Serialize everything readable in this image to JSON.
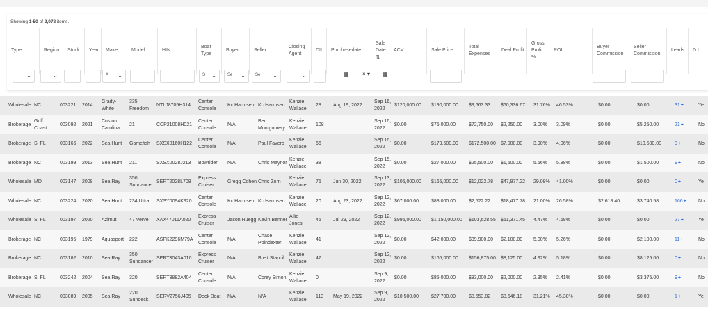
{
  "showing": {
    "prefix": "Showing ",
    "range": "1-50",
    "middle": " of ",
    "total": "2,078",
    "suffix": " items."
  },
  "headers": [
    "Type",
    "Region",
    "Stock",
    "Year",
    "Make",
    "Model",
    "HIN",
    "Boat Type",
    "Buyer",
    "Seller",
    "Closing Agent",
    "DII",
    "Purchasedate",
    "Sale Date",
    "ACV",
    "Sale Price",
    "Total Expenses",
    "Deal Profit",
    "Gross Profit %",
    "ROI",
    "Buyer Commission",
    "Seller Commission",
    "Leads",
    "D L"
  ],
  "filters": {
    "make_value": "A",
    "boattype_value": "S",
    "buyer_value": "Se",
    "seller_value": "Se"
  },
  "rows": [
    {
      "type": "Wholesale",
      "region": "NC",
      "stock": "003221",
      "year": "2014",
      "make": "Grady-White",
      "model": "335 Freedom",
      "hin": "NTLJ8705H314",
      "boat_type": "Center Console",
      "buyer": "Kc Harmsen",
      "seller": "Kc Harmsen",
      "agent": "Kenzie Wallace",
      "dii": "28",
      "purchasedate": "Aug 19, 2022",
      "sale_date": "Sep 16, 2022",
      "acv": "$120,000.00",
      "sale_price": "$190,000.00",
      "expenses": "$9,663.33",
      "profit": "$60,336.67",
      "gross": "31.76%",
      "roi": "46.53%",
      "buyer_comm": "$0.00",
      "seller_comm": "$0.00",
      "leads": "31",
      "dl": "Ye"
    },
    {
      "type": "Brokerage",
      "region": "Gulf Coast",
      "stock": "003092",
      "year": "2021",
      "make": "Custom Carolina",
      "model": "21",
      "hin": "CCP21008H021",
      "boat_type": "Center Console",
      "buyer": "N/A",
      "seller": "Ben Montgomery",
      "agent": "Kenzie Wallace",
      "dii": "108",
      "purchasedate": "",
      "sale_date": "Sep 16, 2022",
      "acv": "$0.00",
      "sale_price": "$75,000.00",
      "expenses": "$72,750.00",
      "profit": "$2,250.00",
      "gross": "3.00%",
      "roi": "3.09%",
      "buyer_comm": "$0.00",
      "seller_comm": "$5,250.00",
      "leads": "21",
      "dl": "No"
    },
    {
      "type": "Brokerage",
      "region": "S. FL",
      "stock": "003166",
      "year": "2022",
      "make": "Sea Hunt",
      "model": "Gamefish",
      "hin": "SXSX0160H122",
      "boat_type": "Center Console",
      "buyer": "N/A",
      "seller": "Paul Favero",
      "agent": "Kenzie Wallace",
      "dii": "66",
      "purchasedate": "",
      "sale_date": "Sep 16, 2022",
      "acv": "$0.00",
      "sale_price": "$179,500.00",
      "expenses": "$172,500.00",
      "profit": "$7,000.00",
      "gross": "3.90%",
      "roi": "4.06%",
      "buyer_comm": "$0.00",
      "seller_comm": "$10,500.00",
      "leads": "0",
      "dl": "No"
    },
    {
      "type": "Brokerage",
      "region": "NC",
      "stock": "003199",
      "year": "2013",
      "make": "Sea Hunt",
      "model": "211",
      "hin": "SXSX0028J213",
      "boat_type": "Bowrider",
      "buyer": "N/A",
      "seller": "Chris Maynor",
      "agent": "Kenzie Wallace",
      "dii": "38",
      "purchasedate": "",
      "sale_date": "Sep 15, 2022",
      "acv": "$0.00",
      "sale_price": "$27,000.00",
      "expenses": "$25,500.00",
      "profit": "$1,500.00",
      "gross": "5.56%",
      "roi": "5.88%",
      "buyer_comm": "$0.00",
      "seller_comm": "$1,500.00",
      "leads": "9",
      "dl": "No"
    },
    {
      "type": "Wholesale",
      "region": "MD",
      "stock": "003147",
      "year": "2008",
      "make": "Sea Ray",
      "model": "350 Sundancer",
      "hin": "SERT2028L708",
      "boat_type": "Express Cruiser",
      "buyer": "Gregg Cohen",
      "seller": "Chris Zorn",
      "agent": "Kenzie Wallace",
      "dii": "75",
      "purchasedate": "Jun 30, 2022",
      "sale_date": "Sep 13, 2022",
      "acv": "$105,000.00",
      "sale_price": "$165,000.00",
      "expenses": "$12,022.78",
      "profit": "$47,977.22",
      "gross": "29.08%",
      "roi": "41.00%",
      "buyer_comm": "$0.00",
      "seller_comm": "$0.00",
      "leads": "0",
      "dl": "Ye"
    },
    {
      "type": "Wholesale",
      "region": "NC",
      "stock": "003224",
      "year": "2020",
      "make": "Sea Hunt",
      "model": "234 Ultra",
      "hin": "SXSY0094K920",
      "boat_type": "Center Console",
      "buyer": "Kc Harmsen",
      "seller": "Kc Harmsen",
      "agent": "Kenzie Wallace",
      "dii": "20",
      "purchasedate": "Aug 23, 2022",
      "sale_date": "Sep 12, 2022",
      "acv": "$67,000.00",
      "sale_price": "$88,000.00",
      "expenses": "$2,522.22",
      "profit": "$18,477.78",
      "gross": "21.00%",
      "roi": "26.58%",
      "buyer_comm": "$2,618.40",
      "seller_comm": "$3,740.58",
      "leads": "166",
      "dl": "No"
    },
    {
      "type": "Wholesale",
      "region": "S. FL",
      "stock": "003197",
      "year": "2020",
      "make": "Azimut",
      "model": "47 Verve",
      "hin": "XAX47011A020",
      "boat_type": "Express Cruiser",
      "buyer": "Jason Ruegg",
      "seller": "Kevin Benner",
      "agent": "Allie Jones",
      "dii": "45",
      "purchasedate": "Jul 29, 2022",
      "sale_date": "Sep 12, 2022",
      "acv": "$995,000.00",
      "sale_price": "$1,150,000.00",
      "expenses": "$103,628.55",
      "profit": "$51,371.45",
      "gross": "4.47%",
      "roi": "4.68%",
      "buyer_comm": "$0.00",
      "seller_comm": "$0.00",
      "leads": "27",
      "dl": "Ye"
    },
    {
      "type": "Brokerage",
      "region": "NC",
      "stock": "003195",
      "year": "1979",
      "make": "Aquasport",
      "model": "222",
      "hin": "ASPK2296M79A",
      "boat_type": "Center Console",
      "buyer": "N/A",
      "seller": "Chase Poindexter",
      "agent": "Kenzie Wallace",
      "dii": "41",
      "purchasedate": "",
      "sale_date": "Sep 12, 2022",
      "acv": "$0.00",
      "sale_price": "$42,000.00",
      "expenses": "$39,900.00",
      "profit": "$2,100.00",
      "gross": "5.00%",
      "roi": "5.26%",
      "buyer_comm": "$0.00",
      "seller_comm": "$2,100.00",
      "leads": "11",
      "dl": "No"
    },
    {
      "type": "Brokerage",
      "region": "NC",
      "stock": "003182",
      "year": "2010",
      "make": "Sea Ray",
      "model": "350 Sundancer",
      "hin": "SERT3043A010",
      "boat_type": "Express Cruiser",
      "buyer": "N/A",
      "seller": "Brett Stancil",
      "agent": "Kenzie Wallace",
      "dii": "47",
      "purchasedate": "",
      "sale_date": "Sep 12, 2022",
      "acv": "$0.00",
      "sale_price": "$165,000.00",
      "expenses": "$156,875.00",
      "profit": "$8,125.00",
      "gross": "4.92%",
      "roi": "5.18%",
      "buyer_comm": "$0.00",
      "seller_comm": "$8,125.00",
      "leads": "0",
      "dl": "No"
    },
    {
      "type": "Brokerage",
      "region": "S. FL",
      "stock": "003242",
      "year": "2004",
      "make": "Sea Ray",
      "model": "320",
      "hin": "SERT3882A404",
      "boat_type": "Center Console",
      "buyer": "N/A",
      "seller": "Corey Simon",
      "agent": "Kenzie Wallace",
      "dii": "0",
      "purchasedate": "",
      "sale_date": "Sep 9, 2022",
      "acv": "$0.00",
      "sale_price": "$85,000.00",
      "expenses": "$83,000.00",
      "profit": "$2,000.00",
      "gross": "2.35%",
      "roi": "2.41%",
      "buyer_comm": "$0.00",
      "seller_comm": "$3,375.00",
      "leads": "9",
      "dl": "No"
    },
    {
      "type": "Wholesale",
      "region": "NC",
      "stock": "003089",
      "year": "2005",
      "make": "Sea Ray",
      "model": "220 Sundeck",
      "hin": "SERV2756J405",
      "boat_type": "Deck Boat",
      "buyer": "N/A",
      "seller": "N/A",
      "agent": "Kenzie Wallace",
      "dii": "113",
      "purchasedate": "May 19, 2022",
      "sale_date": "Sep 9, 2022",
      "acv": "$10,500.00",
      "sale_price": "$27,700.00",
      "expenses": "$8,553.82",
      "profit": "$8,646.18",
      "gross": "31.21%",
      "roi": "45.38%",
      "buyer_comm": "$0.00",
      "seller_comm": "$0.00",
      "leads": "1",
      "dl": "Ye"
    }
  ],
  "icons": {
    "calendar": "calendar-icon",
    "clear": "clear-icon",
    "sort": "sort-icon",
    "add": "plus-icon"
  },
  "colors": {
    "accent": "#2a6ad6",
    "row_shade": "#eaeaea",
    "row_plain": "#f7f7f7"
  }
}
